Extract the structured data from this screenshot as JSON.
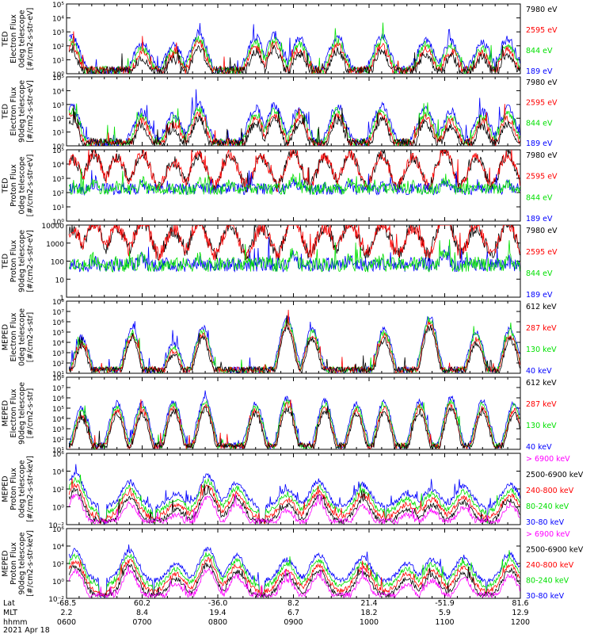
{
  "chart_data": {
    "type": "line",
    "date_label": "2021 Apr 18",
    "x_rows": [
      {
        "label": "Lat",
        "values": [
          "-68.5",
          "60.2",
          "-36.0",
          "8.2",
          "21.4",
          "-51.9",
          "81.6"
        ]
      },
      {
        "label": "MLT",
        "values": [
          "2.2",
          "8.4",
          "19.4",
          "6.7",
          "18.2",
          "5.9",
          "12.9"
        ]
      },
      {
        "label": "hhmm",
        "values": [
          "0600",
          "0700",
          "0800",
          "0900",
          "1000",
          "1100",
          "1200"
        ]
      }
    ],
    "xlim": [
      "0600",
      "1200"
    ],
    "panels": [
      {
        "ylabel": [
          "TED",
          "Electron Flux",
          "0deg telescope",
          "[#/cm2-s-str-eV]"
        ],
        "yscale": "log",
        "ylim": [
          1,
          100000
        ],
        "yticks": [
          {
            "v": 1,
            "t": "10⁰"
          },
          {
            "v": 10,
            "t": "10¹"
          },
          {
            "v": 100,
            "t": "10²"
          },
          {
            "v": 1000,
            "t": "10³"
          },
          {
            "v": 10000,
            "t": "10⁴"
          },
          {
            "v": 100000,
            "t": "10⁵"
          }
        ],
        "series": [
          {
            "name": "7980 eV",
            "color": "#000000"
          },
          {
            "name": "2595 eV",
            "color": "#ff0000"
          },
          {
            "name": "844 eV",
            "color": "#00e000"
          },
          {
            "name": "189 eV",
            "color": "#0000ff"
          }
        ],
        "profile": [
          {
            "t": "0604",
            "v": 500
          },
          {
            "t": "0700",
            "v": 150
          },
          {
            "t": "0725",
            "v": 120
          },
          {
            "t": "0745",
            "v": 800
          },
          {
            "t": "0830",
            "v": 400
          },
          {
            "t": "0845",
            "v": 600
          },
          {
            "t": "0905",
            "v": 300
          },
          {
            "t": "0935",
            "v": 500
          },
          {
            "t": "1010",
            "v": 500
          },
          {
            "t": "1045",
            "v": 300
          },
          {
            "t": "1105",
            "v": 200
          },
          {
            "t": "1130",
            "v": 150
          },
          {
            "t": "1150",
            "v": 300
          }
        ]
      },
      {
        "ylabel": [
          "TED",
          "Electron Flux",
          "90deg telescope",
          "[#/cm2-s-str-eV]"
        ],
        "yscale": "log",
        "ylim": [
          1,
          100000
        ],
        "yticks": [
          {
            "v": 1,
            "t": "10⁰"
          },
          {
            "v": 10,
            "t": "10¹"
          },
          {
            "v": 100,
            "t": "10²"
          },
          {
            "v": 1000,
            "t": "10³"
          },
          {
            "v": 10000,
            "t": "10⁴"
          },
          {
            "v": 100000,
            "t": "10⁵"
          }
        ],
        "series": [
          {
            "name": "7980 eV",
            "color": "#000000"
          },
          {
            "name": "2595 eV",
            "color": "#ff0000"
          },
          {
            "name": "844 eV",
            "color": "#00e000"
          },
          {
            "name": "189 eV",
            "color": "#0000ff"
          }
        ],
        "profile": [
          {
            "t": "0604",
            "v": 800
          },
          {
            "t": "0700",
            "v": 300
          },
          {
            "t": "0725",
            "v": 200
          },
          {
            "t": "0745",
            "v": 1000
          },
          {
            "t": "0830",
            "v": 500
          },
          {
            "t": "0845",
            "v": 900
          },
          {
            "t": "0905",
            "v": 500
          },
          {
            "t": "0935",
            "v": 800
          },
          {
            "t": "1010",
            "v": 900
          },
          {
            "t": "1045",
            "v": 500
          },
          {
            "t": "1105",
            "v": 300
          },
          {
            "t": "1130",
            "v": 300
          },
          {
            "t": "1150",
            "v": 500
          }
        ]
      },
      {
        "ylabel": [
          "TED",
          "Proton Flux",
          "0deg telescope",
          "[#/cm2-s-str-eV]"
        ],
        "yscale": "log",
        "ylim": [
          1,
          100000
        ],
        "yticks": [
          {
            "v": 1,
            "t": "10⁰"
          },
          {
            "v": 10,
            "t": "10¹"
          },
          {
            "v": 100,
            "t": "10²"
          },
          {
            "v": 1000,
            "t": "10³"
          },
          {
            "v": 10000,
            "t": "10⁴"
          },
          {
            "v": 100000,
            "t": "10⁵"
          }
        ],
        "series": [
          {
            "name": "7980 eV",
            "color": "#000000"
          },
          {
            "name": "2595 eV",
            "color": "#ff0000"
          },
          {
            "name": "844 eV",
            "color": "#00e000"
          },
          {
            "name": "189 eV",
            "color": "#0000ff"
          }
        ],
        "profile": [
          {
            "t": "0605",
            "v": 200
          },
          {
            "t": "0622",
            "v": 500
          },
          {
            "t": "0640",
            "v": 300
          },
          {
            "t": "0700",
            "v": 600
          },
          {
            "t": "0725",
            "v": 150
          },
          {
            "t": "0745",
            "v": 500
          },
          {
            "t": "0810",
            "v": 400
          },
          {
            "t": "0835",
            "v": 300
          },
          {
            "t": "0900",
            "v": 800
          },
          {
            "t": "0925",
            "v": 300
          },
          {
            "t": "0945",
            "v": 600
          },
          {
            "t": "1010",
            "v": 400
          },
          {
            "t": "1035",
            "v": 300
          },
          {
            "t": "1100",
            "v": 900
          },
          {
            "t": "1125",
            "v": 300
          },
          {
            "t": "1150",
            "v": 500
          }
        ]
      },
      {
        "ylabel": [
          "TED",
          "Proton Flux",
          "90deg telescope",
          "[#/cm2-s-str-eV]"
        ],
        "yscale": "log",
        "ylim": [
          1,
          10000
        ],
        "yticks": [
          {
            "v": 1,
            "t": "1"
          },
          {
            "v": 10,
            "t": "10"
          },
          {
            "v": 100,
            "t": "100"
          },
          {
            "v": 1000,
            "t": "1000"
          },
          {
            "v": 10000,
            "t": "10000"
          }
        ],
        "series": [
          {
            "name": "7980 eV",
            "color": "#000000"
          },
          {
            "name": "2595 eV",
            "color": "#ff0000"
          },
          {
            "name": "844 eV",
            "color": "#00e000"
          },
          {
            "name": "189 eV",
            "color": "#0000ff"
          }
        ],
        "profile": [
          {
            "t": "0605",
            "v": 60
          },
          {
            "t": "0622",
            "v": 150
          },
          {
            "t": "0640",
            "v": 80
          },
          {
            "t": "0700",
            "v": 200
          },
          {
            "t": "0725",
            "v": 50
          },
          {
            "t": "0745",
            "v": 150
          },
          {
            "t": "0810",
            "v": 100
          },
          {
            "t": "0835",
            "v": 80
          },
          {
            "t": "0900",
            "v": 300
          },
          {
            "t": "0925",
            "v": 80
          },
          {
            "t": "0945",
            "v": 150
          },
          {
            "t": "1010",
            "v": 120
          },
          {
            "t": "1035",
            "v": 80
          },
          {
            "t": "1100",
            "v": 400
          },
          {
            "t": "1125",
            "v": 80
          },
          {
            "t": "1150",
            "v": 150
          }
        ]
      },
      {
        "ylabel": [
          "MEPED",
          "Electron Flux",
          "0deg telescope",
          "[#/cm2-s-str]"
        ],
        "yscale": "log",
        "ylim": [
          10,
          100000000
        ],
        "yticks": [
          {
            "v": 10,
            "t": "10¹"
          },
          {
            "v": 100,
            "t": "10²"
          },
          {
            "v": 1000,
            "t": "10³"
          },
          {
            "v": 10000,
            "t": "10⁴"
          },
          {
            "v": 100000,
            "t": "10⁵"
          },
          {
            "v": 1000000,
            "t": "10⁶"
          },
          {
            "v": 10000000,
            "t": "10⁷"
          },
          {
            "v": 100000000,
            "t": "10⁸"
          }
        ],
        "series": [
          {
            "name": "612 keV",
            "color": "#000000"
          },
          {
            "name": "287 keV",
            "color": "#ff0000"
          },
          {
            "name": "130 keV",
            "color": "#00e000"
          },
          {
            "name": "40 keV",
            "color": "#0000ff"
          }
        ],
        "profile": [
          {
            "t": "0612",
            "v": 30000
          },
          {
            "t": "0652",
            "v": 200000
          },
          {
            "t": "0725",
            "v": 8000
          },
          {
            "t": "0748",
            "v": 300000
          },
          {
            "t": "0855",
            "v": 3000000
          },
          {
            "t": "0915",
            "v": 200000
          },
          {
            "t": "1012",
            "v": 200000
          },
          {
            "t": "1048",
            "v": 3000000
          },
          {
            "t": "1125",
            "v": 100000
          },
          {
            "t": "1152",
            "v": 200000
          }
        ]
      },
      {
        "ylabel": [
          "MEPED",
          "Electron Flux",
          "90deg telescope",
          "[#/cm2-s-str]"
        ],
        "yscale": "log",
        "ylim": [
          10,
          100000000
        ],
        "yticks": [
          {
            "v": 10,
            "t": "10¹"
          },
          {
            "v": 100,
            "t": "10²"
          },
          {
            "v": 1000,
            "t": "10³"
          },
          {
            "v": 10000,
            "t": "10⁴"
          },
          {
            "v": 100000,
            "t": "10⁵"
          },
          {
            "v": 1000000,
            "t": "10⁶"
          },
          {
            "v": 10000000,
            "t": "10⁷"
          },
          {
            "v": 100000000,
            "t": "10⁸"
          }
        ],
        "series": [
          {
            "name": "612 keV",
            "color": "#000000"
          },
          {
            "name": "287 keV",
            "color": "#ff0000"
          },
          {
            "name": "130 keV",
            "color": "#00e000"
          },
          {
            "name": "40 keV",
            "color": "#0000ff"
          }
        ],
        "profile": [
          {
            "t": "0612",
            "v": 100000
          },
          {
            "t": "0640",
            "v": 300000
          },
          {
            "t": "0700",
            "v": 300000
          },
          {
            "t": "0725",
            "v": 500000
          },
          {
            "t": "0750",
            "v": 1000000
          },
          {
            "t": "0830",
            "v": 300000
          },
          {
            "t": "0855",
            "v": 1000000
          },
          {
            "t": "0925",
            "v": 500000
          },
          {
            "t": "0950",
            "v": 300000
          },
          {
            "t": "1012",
            "v": 500000
          },
          {
            "t": "1040",
            "v": 500000
          },
          {
            "t": "1105",
            "v": 1000000
          },
          {
            "t": "1130",
            "v": 500000
          },
          {
            "t": "1155",
            "v": 300000
          }
        ]
      },
      {
        "ylabel": [
          "MEPED",
          "Proton Flux",
          "0deg telescope",
          "[#/cm2-s-str-keV]"
        ],
        "yscale": "log",
        "ylim": [
          0.01,
          1000000
        ],
        "yticks": [
          {
            "v": 0.01,
            "t": "10⁻²"
          },
          {
            "v": 1,
            "t": "10⁰"
          },
          {
            "v": 100,
            "t": "10²"
          },
          {
            "v": 10000,
            "t": "10⁴"
          },
          {
            "v": 1000000,
            "t": "10⁶"
          }
        ],
        "series": [
          {
            "name": "> 6900 keV",
            "color": "#ff00ff"
          },
          {
            "name": "2500-6900 keV",
            "color": "#000000"
          },
          {
            "name": "240-800 keV",
            "color": "#ff0000"
          },
          {
            "name": "80-240 keV",
            "color": "#00e000"
          },
          {
            "name": "30-80 keV",
            "color": "#0000ff"
          }
        ],
        "profile": [
          {
            "t": "0607",
            "v": 5000
          },
          {
            "t": "0650",
            "v": 600
          },
          {
            "t": "0727",
            "v": 30
          },
          {
            "t": "0752",
            "v": 3000
          },
          {
            "t": "0815",
            "v": 500
          },
          {
            "t": "0855",
            "v": 100
          },
          {
            "t": "0920",
            "v": 800
          },
          {
            "t": "0955",
            "v": 300
          },
          {
            "t": "1030",
            "v": 30
          },
          {
            "t": "1050",
            "v": 100
          },
          {
            "t": "1115",
            "v": 200
          },
          {
            "t": "1152",
            "v": 300
          }
        ]
      },
      {
        "ylabel": [
          "MEPED",
          "Proton Flux",
          "90deg telescope",
          "[#/cm2-s-str-keV]"
        ],
        "yscale": "log",
        "ylim": [
          0.01,
          1000000
        ],
        "yticks": [
          {
            "v": 0.01,
            "t": "10⁻²"
          },
          {
            "v": 1,
            "t": "10⁰"
          },
          {
            "v": 100,
            "t": "10²"
          },
          {
            "v": 10000,
            "t": "10⁴"
          },
          {
            "v": 1000000,
            "t": "10⁶"
          }
        ],
        "series": [
          {
            "name": "> 6900 keV",
            "color": "#ff00ff"
          },
          {
            "name": "2500-6900 keV",
            "color": "#000000"
          },
          {
            "name": "240-800 keV",
            "color": "#ff0000"
          },
          {
            "name": "80-240 keV",
            "color": "#00e000"
          },
          {
            "name": "30-80 keV",
            "color": "#0000ff"
          }
        ],
        "profile": [
          {
            "t": "0607",
            "v": 3000
          },
          {
            "t": "0650",
            "v": 3000
          },
          {
            "t": "0727",
            "v": 100
          },
          {
            "t": "0752",
            "v": 5000
          },
          {
            "t": "0815",
            "v": 800
          },
          {
            "t": "0855",
            "v": 300
          },
          {
            "t": "0920",
            "v": 1000
          },
          {
            "t": "0955",
            "v": 500
          },
          {
            "t": "1030",
            "v": 100
          },
          {
            "t": "1050",
            "v": 300
          },
          {
            "t": "1115",
            "v": 500
          },
          {
            "t": "1152",
            "v": 1000
          }
        ]
      }
    ]
  }
}
